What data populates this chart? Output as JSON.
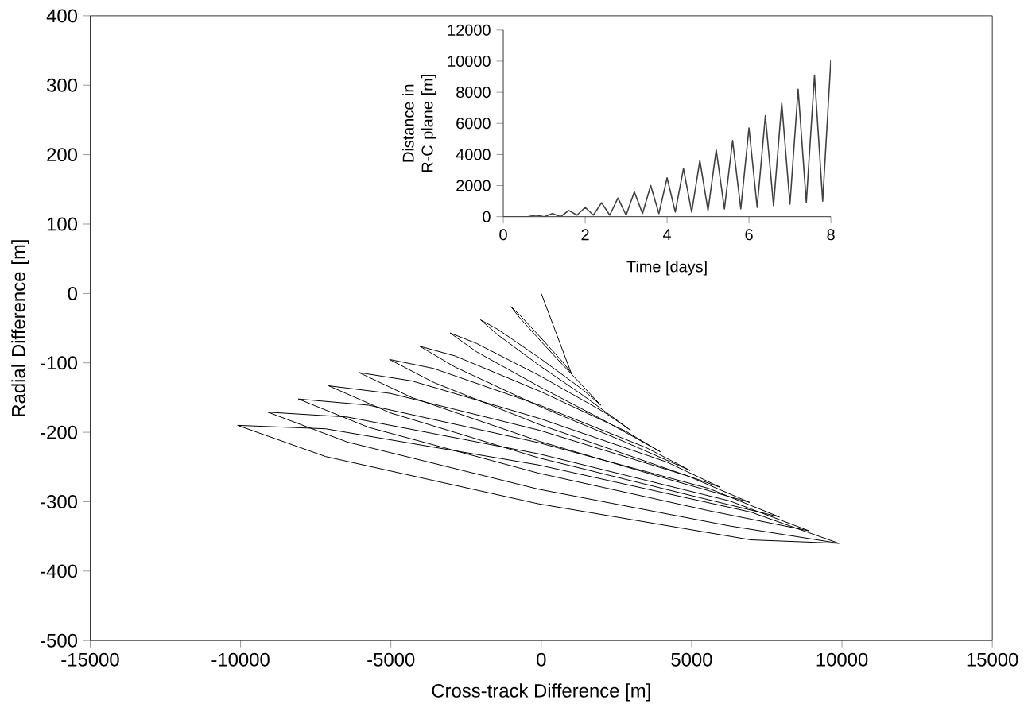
{
  "chart_data": [
    {
      "type": "line",
      "xlabel": "Cross-track Difference [m]",
      "ylabel": "Radial Difference [m]",
      "xlim": [
        -15000,
        15000
      ],
      "ylim": [
        -500,
        400
      ],
      "xticks": [
        -15000,
        -10000,
        -5000,
        0,
        5000,
        10000,
        15000
      ],
      "yticks": [
        -500,
        -400,
        -300,
        -200,
        -100,
        0,
        100,
        200,
        300,
        400
      ],
      "series": [
        {
          "color": "#000000",
          "x": [
            0,
            990,
            697,
            -10,
            -717,
            -1010,
            -717,
            -10,
            697,
            1980,
            1394,
            -20,
            -1434,
            -2020,
            -1434,
            -20,
            1394,
            2970,
            2091,
            -30,
            -2151,
            -3030,
            -2151,
            -30,
            2091,
            3960,
            2788,
            -40,
            -2868,
            -4040,
            -2868,
            -40,
            2788,
            4950,
            3485,
            -50,
            -3585,
            -5050,
            -3585,
            -50,
            3485,
            5940,
            4182,
            -60,
            -4302,
            -6060,
            -4302,
            -60,
            4182,
            6930,
            4879,
            -70,
            -5019,
            -7070,
            -5019,
            -70,
            4879,
            7920,
            5576,
            -80,
            -5736,
            -8080,
            -5736,
            -80,
            5576,
            8910,
            6273,
            -90,
            -6453,
            -9090,
            -6453,
            -90,
            6273,
            9900,
            6970,
            -100,
            -7170,
            -10100,
            -7170,
            -100,
            6970,
            9900
          ],
          "values": [
            0,
            -114,
            -98,
            -64,
            -31,
            -19,
            -35,
            -69,
            -102,
            -161,
            -139,
            -94,
            -52,
            -38,
            -60,
            -105,
            -147,
            -197,
            -171,
            -119,
            -72,
            -57,
            -84,
            -135,
            -183,
            -228,
            -198,
            -141,
            -90,
            -76,
            -106,
            -163,
            -214,
            -255,
            -222,
            -161,
            -108,
            -95,
            -128,
            -189,
            -242,
            -279,
            -243,
            -180,
            -126,
            -114,
            -150,
            -213,
            -267,
            -301,
            -263,
            -197,
            -144,
            -133,
            -172,
            -237,
            -290,
            -322,
            -281,
            -215,
            -161,
            -152,
            -193,
            -259,
            -313,
            -342,
            -299,
            -231,
            -178,
            -171,
            -214,
            -282,
            -335,
            -360,
            -315,
            -247,
            -195,
            -190,
            -235,
            -303,
            -355,
            -360
          ]
        }
      ]
    },
    {
      "type": "line",
      "xlabel": "Time [days]",
      "ylabel": "Distance in R-C plane [m]",
      "xlim": [
        0,
        8
      ],
      "ylim": [
        0,
        12000
      ],
      "xticks": [
        0,
        2,
        4,
        6,
        8
      ],
      "yticks": [
        0,
        2000,
        4000,
        6000,
        8000,
        10000,
        12000
      ],
      "series": [
        {
          "color": "#404040",
          "x": [
            0,
            0.2,
            0.4,
            0.6,
            0.8,
            1.0,
            1.2,
            1.4,
            1.6,
            1.8,
            2.0,
            2.2,
            2.4,
            2.6,
            2.8,
            3.0,
            3.2,
            3.4,
            3.6,
            3.8,
            4.0,
            4.2,
            4.4,
            4.6,
            4.8,
            5.0,
            5.2,
            5.4,
            5.6,
            5.8,
            6.0,
            6.2,
            6.4,
            6.6,
            6.8,
            7.0,
            7.2,
            7.4,
            7.6,
            7.8,
            8.0
          ],
          "values": [
            0,
            0,
            0,
            0,
            100,
            0,
            200,
            0,
            400,
            100,
            600,
            100,
            900,
            100,
            1200,
            100,
            1600,
            200,
            2000,
            200,
            2500,
            300,
            3100,
            300,
            3600,
            400,
            4300,
            500,
            4900,
            500,
            5700,
            600,
            6500,
            700,
            7300,
            800,
            8200,
            900,
            9100,
            1000,
            10100
          ]
        }
      ]
    }
  ]
}
